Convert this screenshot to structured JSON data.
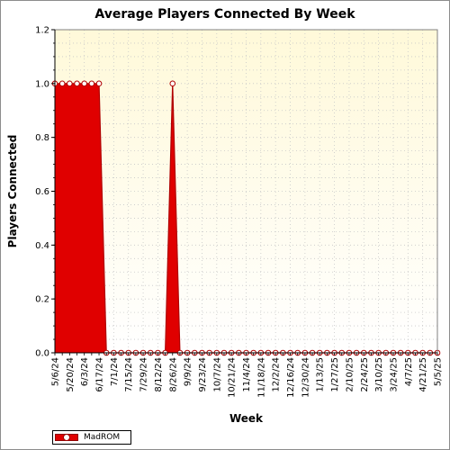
{
  "chart_data": {
    "type": "area",
    "title": "Average Players Connected By Week",
    "xlabel": "Week",
    "ylabel": "Players Connected",
    "ylim": [
      0,
      1.2
    ],
    "yticks": [
      "0.0",
      "0.2",
      "0.4",
      "0.6",
      "0.8",
      "1.0",
      "1.2"
    ],
    "ytick_values": [
      0,
      0.2,
      0.4,
      0.6,
      0.8,
      1.0,
      1.2
    ],
    "grid": true,
    "legend_position": "bottom-left",
    "colors": {
      "fill": "#e00000",
      "line": "#b00000",
      "marker_fill": "#ffffff",
      "marker_edge": "#b00000",
      "plot_background_top": "#fff9d9",
      "plot_background_bottom": "#ffffff",
      "grid": "#c8c8c8"
    },
    "x": [
      "5/6/24",
      "5/13/24",
      "5/20/24",
      "5/27/24",
      "6/3/24",
      "6/10/24",
      "6/17/24",
      "6/24/24",
      "7/1/24",
      "7/8/24",
      "7/15/24",
      "7/22/24",
      "7/29/24",
      "8/5/24",
      "8/12/24",
      "8/19/24",
      "8/26/24",
      "9/2/24",
      "9/9/24",
      "9/16/24",
      "9/23/24",
      "9/30/24",
      "10/7/24",
      "10/14/24",
      "10/21/24",
      "10/28/24",
      "11/4/24",
      "11/11/24",
      "11/18/24",
      "11/25/24",
      "12/2/24",
      "12/9/24",
      "12/16/24",
      "12/23/24",
      "12/30/24",
      "1/6/25",
      "1/13/25",
      "1/20/25",
      "1/27/25",
      "2/3/25",
      "2/10/25",
      "2/17/25",
      "2/24/25",
      "3/3/25",
      "3/10/25",
      "3/17/25",
      "3/24/25",
      "3/31/25",
      "4/7/25",
      "4/14/25",
      "4/21/25",
      "4/28/25",
      "5/5/25"
    ],
    "xtick_labels": [
      "5/6/24",
      "5/20/24",
      "6/3/24",
      "6/17/24",
      "7/1/24",
      "7/15/24",
      "7/29/24",
      "8/12/24",
      "8/26/24",
      "9/9/24",
      "9/23/24",
      "10/7/24",
      "10/21/24",
      "11/4/24",
      "11/18/24",
      "12/2/24",
      "12/16/24",
      "12/30/24",
      "1/13/25",
      "1/27/25",
      "2/10/25",
      "2/24/25",
      "3/10/25",
      "3/24/25",
      "4/7/25",
      "4/21/25",
      "5/5/25"
    ],
    "series": [
      {
        "name": "MadROM",
        "values": [
          1,
          1,
          1,
          1,
          1,
          1,
          1,
          0,
          0,
          0,
          0,
          0,
          0,
          0,
          0,
          0,
          1,
          0,
          0,
          0,
          0,
          0,
          0,
          0,
          0,
          0,
          0,
          0,
          0,
          0,
          0,
          0,
          0,
          0,
          0,
          0,
          0,
          0,
          0,
          0,
          0,
          0,
          0,
          0,
          0,
          0,
          0,
          0,
          0,
          0,
          0,
          0,
          0
        ]
      }
    ]
  },
  "legend": {
    "series_label": "MadROM"
  }
}
